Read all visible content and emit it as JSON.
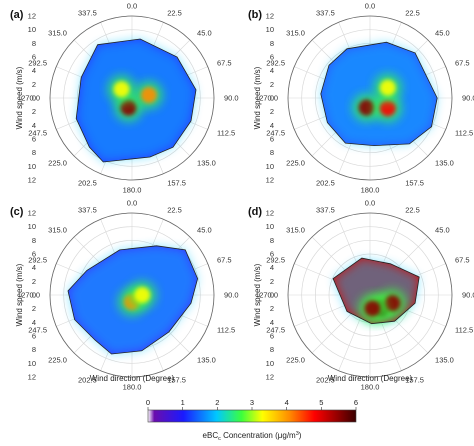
{
  "chart_data": [
    {
      "type": "heatmap",
      "panel_label": "(a)",
      "xlabel": "",
      "ylabel": "Wind speed (m/s)",
      "theta_ticks": [
        "0.0",
        "22.5",
        "45.0",
        "67.5",
        "90.0",
        "112.5",
        "135.0",
        "157.5",
        "180.0",
        "202.5",
        "225.0",
        "247.5",
        "270.0",
        "292.5",
        "315.0",
        "337.5"
      ],
      "r_ticks": [
        "12",
        "10",
        "8",
        "6",
        "4",
        "2",
        "0",
        "2",
        "4",
        "6",
        "8",
        "10",
        "12"
      ],
      "rlim": [
        0,
        12
      ],
      "hotspots": [
        {
          "direction_deg": 200,
          "speed_ms": 1.5,
          "ebc": 5.0
        },
        {
          "direction_deg": 80,
          "speed_ms": 2.5,
          "ebc": 4.0
        },
        {
          "direction_deg": 310,
          "speed_ms": 2.0,
          "ebc": 3.5
        }
      ]
    },
    {
      "type": "heatmap",
      "panel_label": "(b)",
      "xlabel": "",
      "ylabel": "Wind speed (m/s)",
      "theta_ticks": [
        "0.0",
        "22.5",
        "45.0",
        "67.5",
        "90.0",
        "112.5",
        "135.0",
        "157.5",
        "180.0",
        "202.5",
        "225.0",
        "247.5",
        "270.0",
        "292.5",
        "315.0",
        "337.5"
      ],
      "r_ticks": [
        "12",
        "10",
        "8",
        "6",
        "4",
        "2",
        "0",
        "2",
        "4",
        "6",
        "8",
        "10",
        "12"
      ],
      "rlim": [
        0,
        12
      ],
      "hotspots": [
        {
          "direction_deg": 200,
          "speed_ms": 1.5,
          "ebc": 5.5
        },
        {
          "direction_deg": 120,
          "speed_ms": 3.0,
          "ebc": 4.5
        },
        {
          "direction_deg": 60,
          "speed_ms": 3.0,
          "ebc": 3.5
        }
      ]
    },
    {
      "type": "heatmap",
      "panel_label": "(c)",
      "xlabel": "Wind direction (Degree)",
      "ylabel": "Wind speed (m/s)",
      "theta_ticks": [
        "0.0",
        "22.5",
        "45.0",
        "67.5",
        "90.0",
        "112.5",
        "135.0",
        "157.5",
        "180.0",
        "202.5",
        "225.0",
        "247.5",
        "270.0",
        "292.5",
        "315.0",
        "337.5"
      ],
      "r_ticks": [
        "12",
        "10",
        "8",
        "6",
        "4",
        "2",
        "0",
        "2",
        "4",
        "6",
        "8",
        "10",
        "12"
      ],
      "rlim": [
        0,
        12
      ],
      "hotspots": [
        {
          "direction_deg": 180,
          "speed_ms": 1.0,
          "ebc": 4.0
        },
        {
          "direction_deg": 90,
          "speed_ms": 1.5,
          "ebc": 3.5
        }
      ]
    },
    {
      "type": "heatmap",
      "panel_label": "(d)",
      "xlabel": "Wind direction (Degree)",
      "ylabel": "Wind speed (m/s)",
      "theta_ticks": [
        "0.0",
        "22.5",
        "45.0",
        "67.5",
        "90.0",
        "112.5",
        "135.0",
        "157.5",
        "180.0",
        "202.5",
        "225.0",
        "247.5",
        "270.0",
        "292.5",
        "315.0",
        "337.5"
      ],
      "r_ticks": [
        "12",
        "10",
        "8",
        "6",
        "4",
        "2",
        "0",
        "2",
        "4",
        "6",
        "8",
        "10",
        "12"
      ],
      "rlim": [
        0,
        12
      ],
      "hotspots": [
        {
          "direction_deg": 140,
          "speed_ms": 2.5,
          "ebc": 6.0
        },
        {
          "direction_deg": 110,
          "speed_ms": 3.5,
          "ebc": 5.5
        },
        {
          "direction_deg": 170,
          "speed_ms": 2.0,
          "ebc": 5.0
        }
      ]
    }
  ],
  "colorbar": {
    "title": "eBC",
    "title_sub": "c",
    "title_rest": " Concentration (μg/m",
    "title_sup": "3",
    "title_end": ")",
    "ticks": [
      "0",
      "1",
      "2",
      "3",
      "4",
      "5",
      "6"
    ],
    "range": [
      0,
      6
    ],
    "colors": [
      "#ffffff",
      "#6a0dad",
      "#1a1aff",
      "#00c8ff",
      "#3cff3c",
      "#ffff00",
      "#ff8c00",
      "#ff0000",
      "#8b0000",
      "#3a0000"
    ]
  }
}
